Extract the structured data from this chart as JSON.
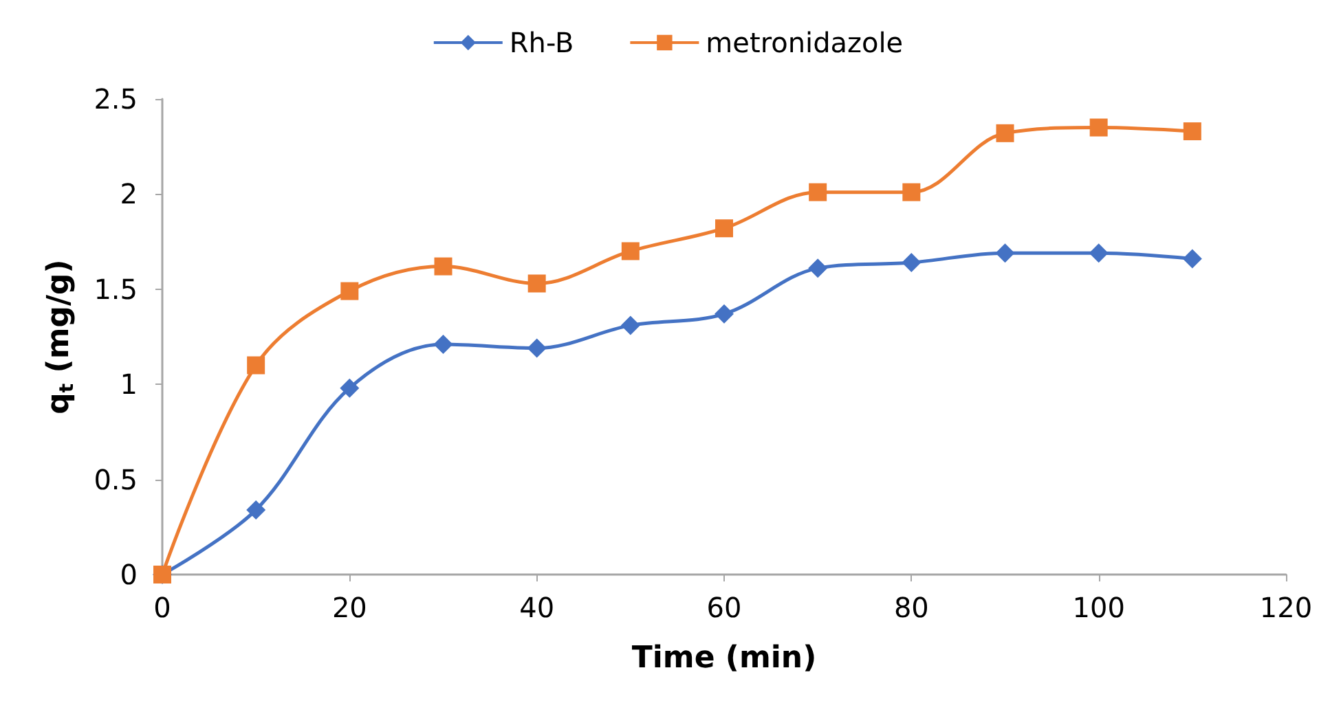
{
  "chart_data": {
    "type": "line",
    "xlabel": "Time (min)",
    "ylabel": "q$_{t}$ (mg/g)",
    "x": [
      0,
      10,
      20,
      30,
      40,
      50,
      60,
      70,
      80,
      90,
      100,
      110
    ],
    "series": [
      {
        "name": "Rh-B",
        "color": "#4472c4",
        "marker": "diamond",
        "values": [
          0,
          0.34,
          0.98,
          1.21,
          1.19,
          1.31,
          1.37,
          1.61,
          1.64,
          1.69,
          1.69,
          1.66
        ]
      },
      {
        "name": "metronidazole",
        "color": "#ed7d31",
        "marker": "square",
        "values": [
          0,
          1.1,
          1.49,
          1.62,
          1.53,
          1.7,
          1.82,
          2.01,
          2.01,
          2.32,
          2.35,
          2.33
        ]
      }
    ],
    "xlim": [
      0,
      120
    ],
    "xticks": [
      0,
      20,
      40,
      60,
      80,
      100,
      120
    ],
    "ylim": [
      0,
      2.5
    ],
    "yticks": [
      0,
      0.5,
      1,
      1.5,
      2,
      2.5
    ],
    "grid": false,
    "legend": "top",
    "line_style": "solid"
  }
}
